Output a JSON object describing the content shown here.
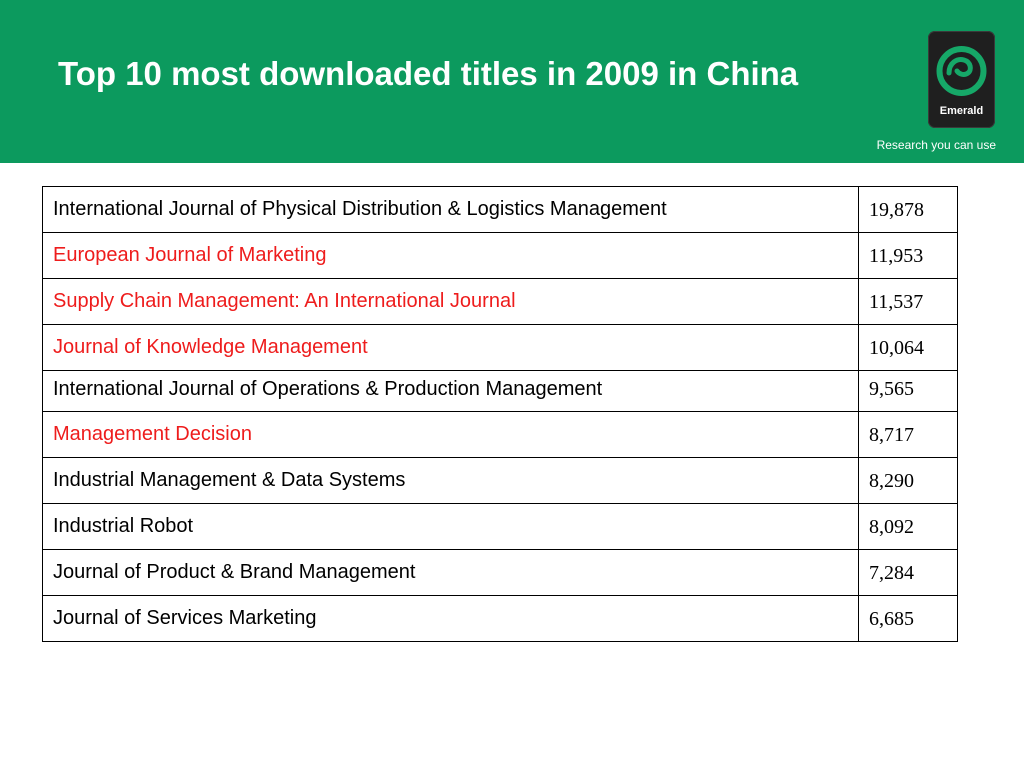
{
  "header": {
    "title": "Top 10 most downloaded titles in 2009 in China",
    "logo_text": "Emerald",
    "tagline": "Research you can use",
    "background_color": "#0c9a5e"
  },
  "table": {
    "rows": [
      {
        "title": "International Journal of Physical Distribution & Logistics Management",
        "downloads": "19,878",
        "color": "#000000"
      },
      {
        "title": "European Journal of Marketing",
        "downloads": "11,953",
        "color": "#ee1c1c"
      },
      {
        "title": "Supply Chain Management: An International Journal",
        "downloads": "11,537",
        "color": "#ee1c1c"
      },
      {
        "title": "Journal of Knowledge Management",
        "downloads": "10,064",
        "color": "#ee1c1c"
      },
      {
        "title": "International Journal of Operations & Production Management",
        "downloads": "9,565",
        "color": "#000000"
      },
      {
        "title": "Management Decision",
        "downloads": "8,717",
        "color": "#ee1c1c"
      },
      {
        "title": "Industrial Management & Data Systems",
        "downloads": "8,290",
        "color": "#000000"
      },
      {
        "title": "Industrial Robot",
        "downloads": "8,092",
        "color": "#000000"
      },
      {
        "title": "Journal of Product & Brand Management",
        "downloads": "7,284",
        "color": "#000000"
      },
      {
        "title": "Journal of Services Marketing",
        "downloads": "6,685",
        "color": "#000000"
      }
    ]
  }
}
